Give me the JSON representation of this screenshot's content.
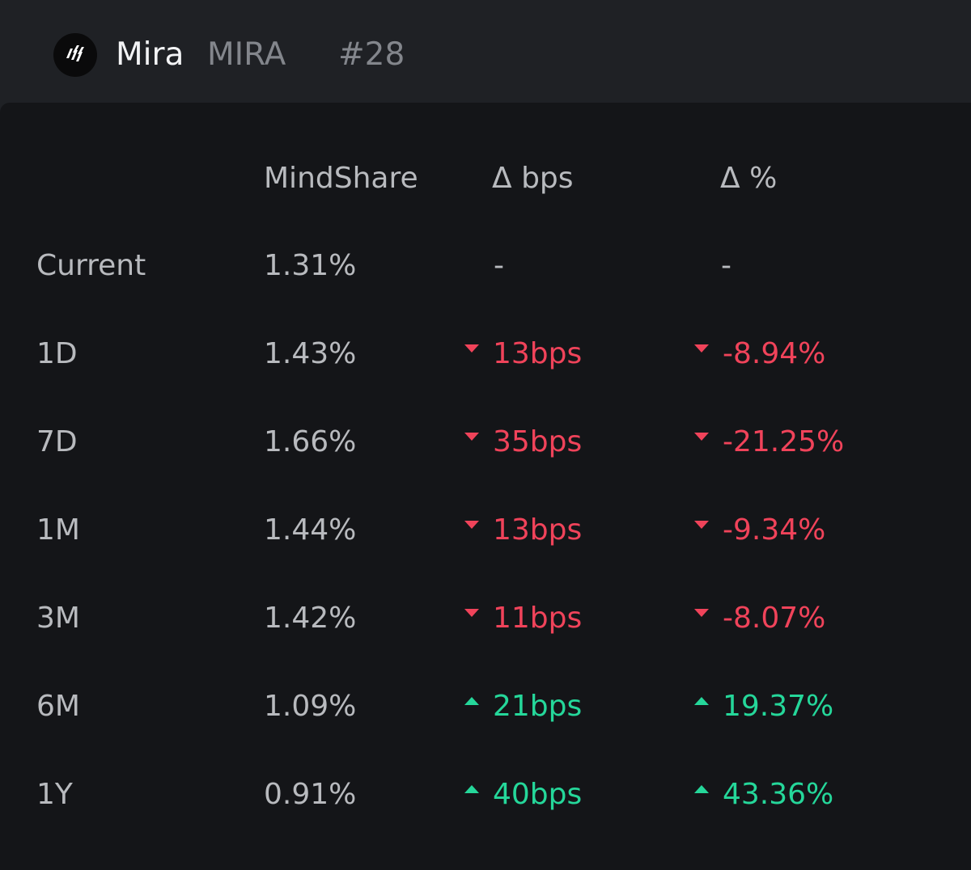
{
  "header": {
    "logo_icon": "mira-logo-icon",
    "name": "Mira",
    "symbol": "MIRA",
    "rank": "#28"
  },
  "table": {
    "columns": {
      "mindshare": "MindShare",
      "delta_bps": "Δ bps",
      "delta_pct": "Δ %"
    },
    "rows": [
      {
        "label": "Current",
        "mindshare": "1.31%",
        "bps": "-",
        "pct": "-",
        "direction": "none"
      },
      {
        "label": "1D",
        "mindshare": "1.43%",
        "bps": "13bps",
        "pct": "-8.94%",
        "direction": "down"
      },
      {
        "label": "7D",
        "mindshare": "1.66%",
        "bps": "35bps",
        "pct": "-21.25%",
        "direction": "down"
      },
      {
        "label": "1M",
        "mindshare": "1.44%",
        "bps": "13bps",
        "pct": "-9.34%",
        "direction": "down"
      },
      {
        "label": "3M",
        "mindshare": "1.42%",
        "bps": "11bps",
        "pct": "-8.07%",
        "direction": "down"
      },
      {
        "label": "6M",
        "mindshare": "1.09%",
        "bps": "21bps",
        "pct": "19.37%",
        "direction": "up"
      },
      {
        "label": "1Y",
        "mindshare": "0.91%",
        "bps": "40bps",
        "pct": "43.36%",
        "direction": "up"
      }
    ]
  },
  "colors": {
    "negative": "#f0435a",
    "positive": "#25d79a",
    "header_bg": "#1f2125",
    "panel_bg": "#141518"
  }
}
